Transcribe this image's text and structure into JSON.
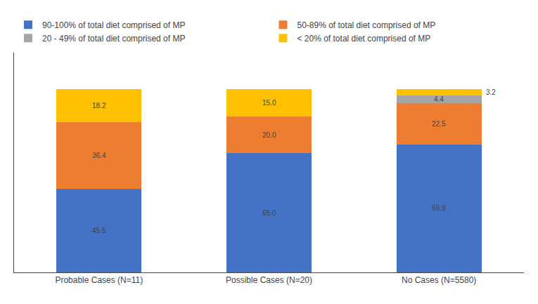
{
  "chart_data": {
    "type": "bar",
    "stacked": true,
    "categories": [
      "Probable Cases (N=11)",
      "Possible Cases (N=20)",
      "No Cases (N=5580)"
    ],
    "series": [
      {
        "name": "90-100% of total diet comprised of MP",
        "color": "#4472C4",
        "values": [
          45.5,
          65.0,
          69.9
        ],
        "value_labels": [
          "45.5",
          "65.0",
          "69.9"
        ]
      },
      {
        "name": "50-89% of total diet comprised of MP",
        "color": "#ED7D31",
        "values": [
          36.4,
          20.0,
          22.5
        ],
        "value_labels": [
          "36.4",
          "20.0",
          "22.5"
        ]
      },
      {
        "name": "20 - 49% of total diet comprised of MP",
        "color": "#A5A5A5",
        "values": [
          0.0,
          0.0,
          4.4
        ],
        "value_labels": [
          null,
          null,
          "4.4"
        ]
      },
      {
        "name": "< 20% of total diet comprised of MP",
        "color": "#FFC000",
        "values": [
          18.2,
          15.0,
          3.2
        ],
        "value_labels": [
          "18.2",
          "15.0",
          "3.2"
        ]
      }
    ],
    "ylim": [
      0,
      120
    ],
    "yticks": [],
    "grid": false,
    "legend": "upper left",
    "data_labels": true,
    "tick_labels": "x"
  }
}
